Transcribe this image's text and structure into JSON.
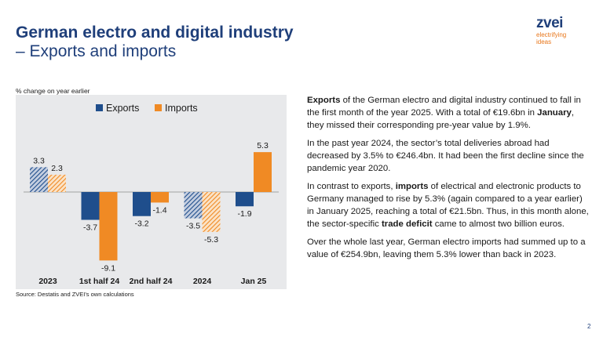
{
  "header": {
    "title_line1": "German electro and digital industry",
    "title_line2": "– Exports and imports"
  },
  "logo": {
    "word": "zvei",
    "tagline_1": "electrifying",
    "tagline_2": "ideas"
  },
  "colors": {
    "title": "#1f3f7a",
    "exports": "#1f4e8c",
    "imports": "#f08a24",
    "chart_background": "#e8e9eb"
  },
  "chart_data": {
    "type": "bar",
    "ylabel": "% change on year earlier",
    "categories": [
      "2023",
      "1st half 24",
      "2nd half 24",
      "2024",
      "Jan 25"
    ],
    "series": [
      {
        "name": "Exports",
        "values": [
          3.3,
          -3.7,
          -3.2,
          -3.5,
          -1.9
        ]
      },
      {
        "name": "Imports",
        "values": [
          2.3,
          -9.1,
          -1.4,
          -5.3,
          5.3
        ]
      }
    ],
    "hatched_categories": [
      "2023",
      "2024"
    ],
    "legend_position": "top-center",
    "grid": false,
    "data_labels": true
  },
  "source": "Source: Destatis and ZVEI's own calculations",
  "body_text": {
    "p1": {
      "bold_1": "Exports",
      "text_1": " of the German electro and digital industry continued to fall in the first month of the year 2025. With a total of €19.6bn in ",
      "bold_2": "January",
      "text_2": ", they missed their corresponding pre-year value by 1.9%."
    },
    "p2": "In the past year 2024, the sector’s total deliveries abroad had decreased by 3.5% to €246.4bn. It had been the first decline since the pandemic year 2020.",
    "p3": {
      "text_1": "In contrast to exports, ",
      "bold_1": "imports",
      "text_2": " of electrical and electronic products to Germany managed to rise by 5.3% (again compared to a year earlier) in January 2025, reaching a total of €21.5bn. Thus, in this month alone, the sector-specific ",
      "bold_2": "trade deficit",
      "text_3": " came to almost two billion euros."
    },
    "p4": "Over the whole last year, German electro imports had summed up to a value of €254.9bn, leaving them 5.3% lower than back in 2023."
  },
  "page_number": "2"
}
